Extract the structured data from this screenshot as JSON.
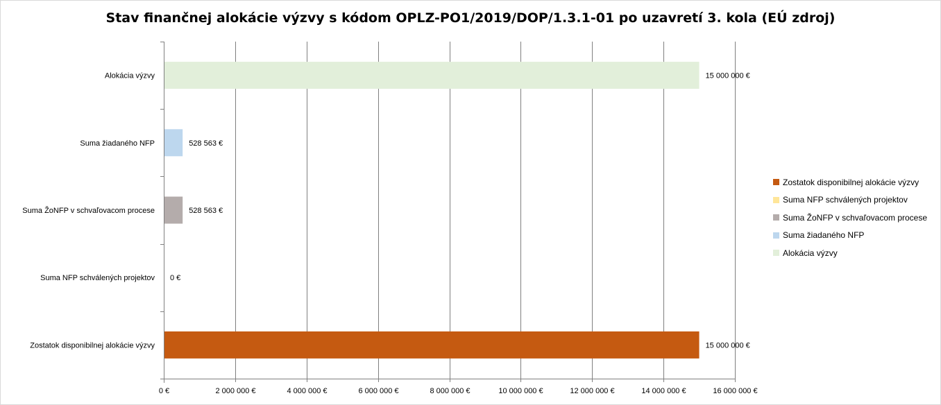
{
  "chart_data": {
    "type": "bar",
    "orientation": "horizontal",
    "title": "Stav finančnej alokácie výzvy s kódom OPLZ-PO1/2019/DOP/1.3.1-01 po uzavretí 3. kola (EÚ zdroj)",
    "categories": [
      "Alokácia výzvy",
      "Suma žiadaného NFP",
      "Suma ŽoNFP v schvaľovacom procese",
      "Suma NFP schválených projektov",
      "Zostatok disponibilnej alokácie výzvy"
    ],
    "values": [
      15000000,
      528563,
      528563,
      0,
      15000000
    ],
    "data_labels": [
      "15 000 000 €",
      "528 563 €",
      "528 563 €",
      "0 €",
      "15 000 000 €"
    ],
    "colors": [
      "#e2efda",
      "#bdd7ee",
      "#b4acab",
      "#ffe699",
      "#c55a11"
    ],
    "x_ticks": [
      0,
      2000000,
      4000000,
      6000000,
      8000000,
      10000000,
      12000000,
      14000000,
      16000000
    ],
    "x_tick_labels": [
      "0 €",
      "2 000 000 €",
      "4 000 000 €",
      "6 000 000 €",
      "8 000 000 €",
      "10 000 000 €",
      "12 000 000 €",
      "14 000 000 €",
      "16 000 000 €"
    ],
    "xlim": [
      0,
      16000000
    ],
    "grid": true,
    "legend_position": "right",
    "legend": [
      {
        "label": "Zostatok disponibilnej alokácie výzvy",
        "color": "#c55a11"
      },
      {
        "label": "Suma NFP schválených projektov",
        "color": "#ffe699"
      },
      {
        "label": "Suma ŽoNFP v schvaľovacom procese",
        "color": "#b4acab"
      },
      {
        "label": "Suma žiadaného NFP",
        "color": "#bdd7ee"
      },
      {
        "label": "Alokácia výzvy",
        "color": "#e2efda"
      }
    ]
  }
}
